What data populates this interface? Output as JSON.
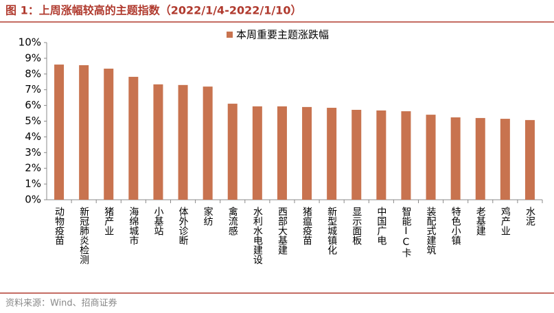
{
  "title": "图 1：上周涨幅较高的主题指数（2022/1/4-2022/1/10）",
  "source": "资料来源：Wind、招商证券",
  "chart_data": {
    "type": "bar",
    "categories": [
      "动物疫苗",
      "新冠肺炎检测",
      "猪产业",
      "海绵城市",
      "小基站",
      "体外诊断",
      "家纺",
      "禽流感",
      "水利水电建设",
      "西部大基建",
      "猪瘟疫苗",
      "新型城镇化",
      "显示面板",
      "中国广电",
      "智能IC卡",
      "装配式建筑",
      "特色小镇",
      "老基建",
      "鸡产业",
      "水泥"
    ],
    "series": [
      {
        "name": "本周重要主题涨跌幅",
        "color": "#c8734f",
        "values": [
          8.6,
          8.56,
          8.34,
          7.82,
          7.34,
          7.3,
          7.2,
          6.11,
          5.94,
          5.94,
          5.9,
          5.85,
          5.72,
          5.68,
          5.63,
          5.41,
          5.24,
          5.2,
          5.15,
          5.07
        ]
      }
    ],
    "ylim": [
      0,
      10
    ],
    "yticks": [
      {
        "value": 0,
        "label": "0%"
      },
      {
        "value": 1,
        "label": "1%"
      },
      {
        "value": 2,
        "label": "2%"
      },
      {
        "value": 3,
        "label": "3%"
      },
      {
        "value": 4,
        "label": "4%"
      },
      {
        "value": 5,
        "label": "5%"
      },
      {
        "value": 6,
        "label": "6%"
      },
      {
        "value": 7,
        "label": "7%"
      },
      {
        "value": 8,
        "label": "8%"
      },
      {
        "value": 9,
        "label": "9%"
      },
      {
        "value": 10,
        "label": "10%"
      }
    ],
    "grid": false,
    "legend": "top"
  }
}
